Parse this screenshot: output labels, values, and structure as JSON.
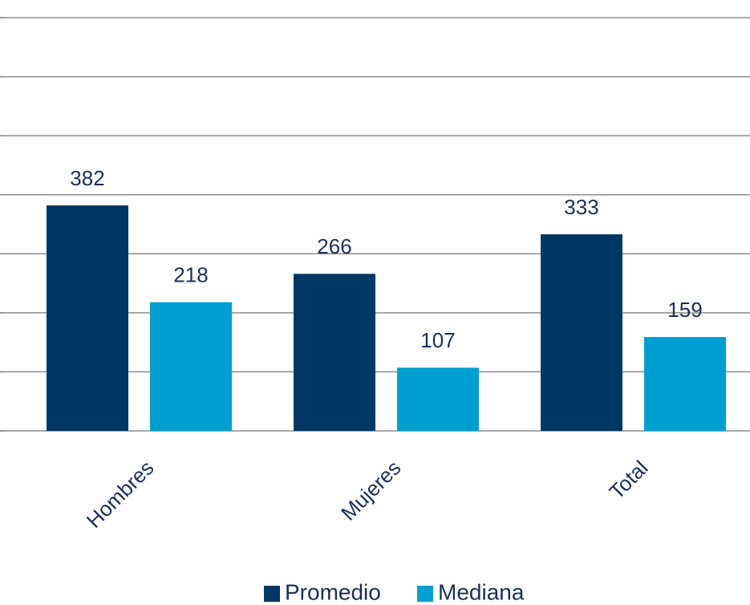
{
  "chart_data": {
    "type": "bar",
    "categories": [
      "Hombres",
      "Mujeres",
      "Total"
    ],
    "series": [
      {
        "name": "Promedio",
        "color": "#003865",
        "values": [
          382,
          266,
          333
        ]
      },
      {
        "name": "Mediana",
        "color": "#009fd1",
        "values": [
          218,
          107,
          159
        ]
      }
    ],
    "ylim": [
      0,
      700
    ],
    "yticks": [
      0,
      100,
      200,
      300,
      400,
      500,
      600,
      700
    ],
    "grid": true,
    "legend": "bottom"
  }
}
